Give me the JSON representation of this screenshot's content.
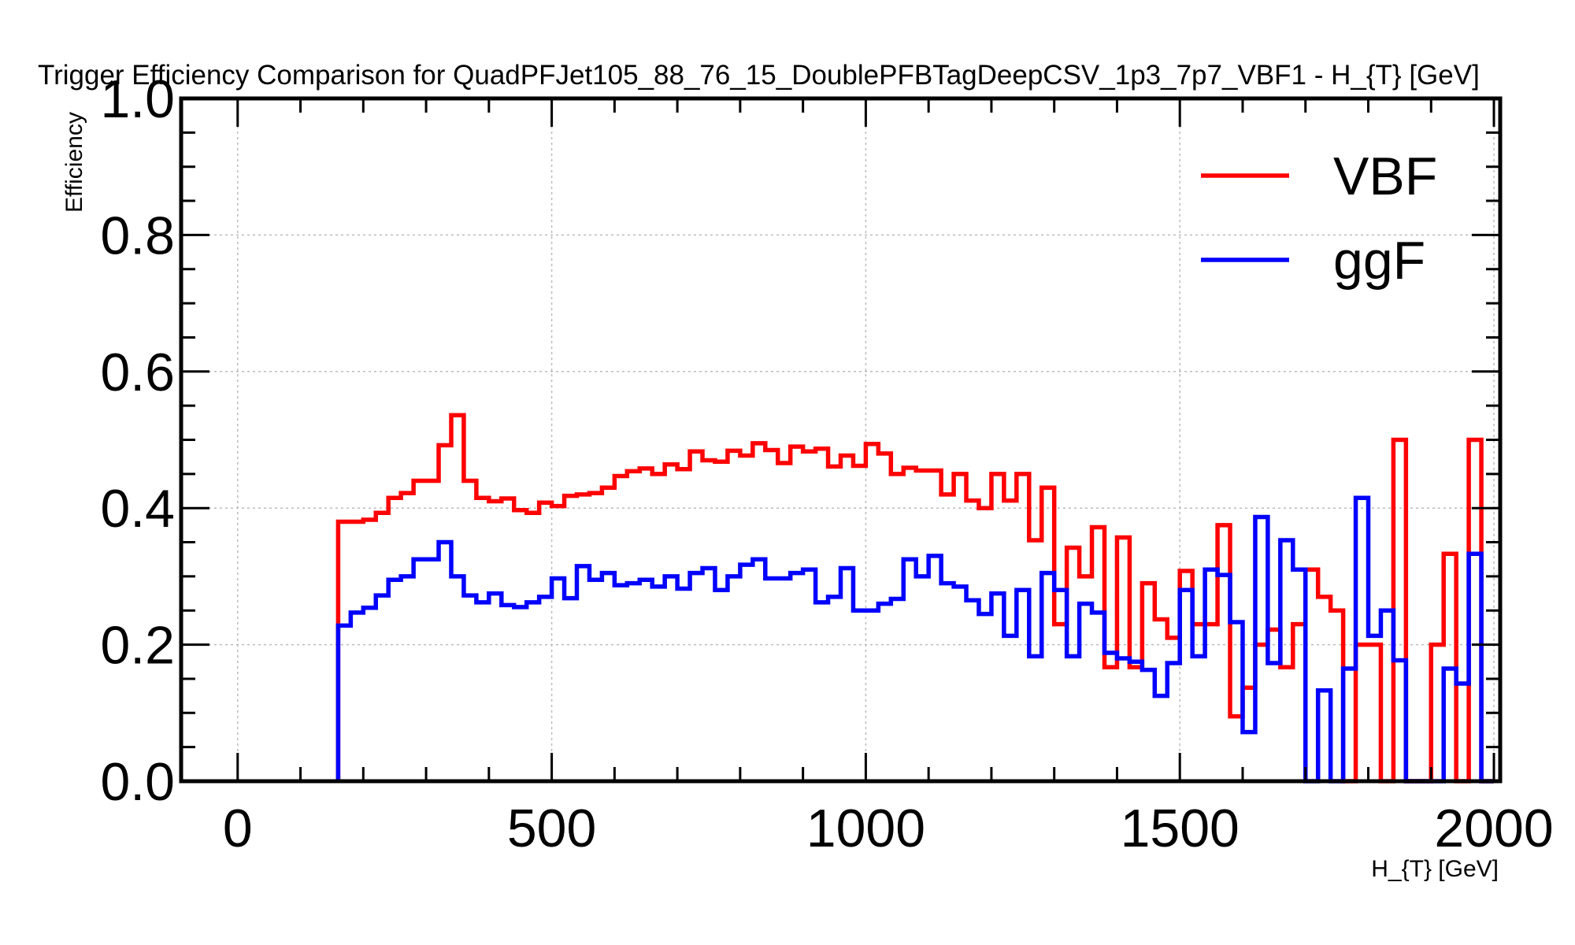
{
  "chart_data": {
    "type": "line",
    "title": "Trigger Efficiency Comparison for QuadPFJet105_88_76_15_DoublePFBTagDeepCSV_1p3_7p7_VBF1 - H_{T} [GeV]",
    "xlabel": "H_{T} [GeV]",
    "ylabel": "Efficiency",
    "xlim": [
      -90,
      2010
    ],
    "ylim": [
      0,
      1
    ],
    "x_ticks": [
      0,
      500,
      1000,
      1500,
      2000
    ],
    "x_tick_labels": [
      "0",
      "500",
      "1000",
      "1500",
      "2000"
    ],
    "y_ticks": [
      0,
      0.2,
      0.4,
      0.6,
      0.8,
      1.0
    ],
    "y_tick_labels": [
      "0.0",
      "0.2",
      "0.4",
      "0.6",
      "0.8",
      "1.0"
    ],
    "grid": true,
    "legend_position": "top-right",
    "bin_edges": [
      160,
      180,
      200,
      220,
      240,
      260,
      280,
      300,
      320,
      340,
      360,
      380,
      400,
      420,
      440,
      460,
      480,
      500,
      520,
      540,
      560,
      580,
      600,
      620,
      640,
      660,
      680,
      700,
      720,
      740,
      760,
      780,
      800,
      820,
      840,
      860,
      880,
      900,
      920,
      940,
      960,
      980,
      1000,
      1020,
      1040,
      1060,
      1080,
      1100,
      1120,
      1140,
      1160,
      1180,
      1200,
      1220,
      1240,
      1260,
      1280,
      1300,
      1320,
      1340,
      1360,
      1380,
      1400,
      1420,
      1440,
      1460,
      1480,
      1500,
      1520,
      1540,
      1560,
      1580,
      1600,
      1620,
      1640,
      1660,
      1680,
      1700,
      1720,
      1740,
      1760,
      1780,
      1800,
      1820,
      1840,
      1860,
      1880,
      1900,
      1920,
      1940,
      1960,
      1980
    ],
    "series": [
      {
        "name": "VBF",
        "color": "#ff0000",
        "values": [
          0.38,
          0.38,
          0.383,
          0.393,
          0.415,
          0.422,
          0.44,
          0.44,
          0.492,
          0.536,
          0.44,
          0.415,
          0.41,
          0.414,
          0.397,
          0.393,
          0.408,
          0.403,
          0.418,
          0.42,
          0.422,
          0.43,
          0.447,
          0.454,
          0.458,
          0.45,
          0.464,
          0.457,
          0.483,
          0.47,
          0.468,
          0.484,
          0.477,
          0.495,
          0.485,
          0.466,
          0.49,
          0.483,
          0.487,
          0.461,
          0.477,
          0.462,
          0.494,
          0.48,
          0.45,
          0.459,
          0.455,
          0.455,
          0.42,
          0.45,
          0.411,
          0.4,
          0.45,
          0.411,
          0.45,
          0.353,
          0.43,
          0.23,
          0.342,
          0.3,
          0.372,
          0.167,
          0.357,
          0.167,
          0.29,
          0.237,
          0.21,
          0.308,
          0.23,
          0.23,
          0.375,
          0.095,
          0.137,
          0.2,
          0.222,
          0.167,
          0.23,
          0.31,
          0.27,
          0.25,
          0,
          0.2,
          0.2,
          0,
          0.5,
          0,
          0,
          0.2,
          0.333,
          0,
          0.5,
          0
        ]
      },
      {
        "name": "ggF",
        "color": "#0000ff",
        "values": [
          0.228,
          0.247,
          0.254,
          0.272,
          0.295,
          0.3,
          0.325,
          0.325,
          0.35,
          0.3,
          0.272,
          0.262,
          0.275,
          0.258,
          0.255,
          0.262,
          0.27,
          0.297,
          0.268,
          0.315,
          0.295,
          0.305,
          0.287,
          0.29,
          0.295,
          0.285,
          0.3,
          0.282,
          0.305,
          0.312,
          0.28,
          0.3,
          0.317,
          0.325,
          0.297,
          0.297,
          0.305,
          0.31,
          0.262,
          0.27,
          0.312,
          0.25,
          0.25,
          0.26,
          0.267,
          0.325,
          0.3,
          0.33,
          0.29,
          0.285,
          0.265,
          0.245,
          0.275,
          0.213,
          0.28,
          0.183,
          0.305,
          0.28,
          0.183,
          0.26,
          0.247,
          0.188,
          0.18,
          0.175,
          0.163,
          0.125,
          0.173,
          0.28,
          0.183,
          0.31,
          0.302,
          0.233,
          0.072,
          0.387,
          0.173,
          0.353,
          0.31,
          0,
          0.133,
          0,
          0.165,
          0.415,
          0.213,
          0.25,
          0.177,
          0,
          0,
          0,
          0.165,
          0.143,
          0.333,
          0
        ]
      }
    ]
  }
}
